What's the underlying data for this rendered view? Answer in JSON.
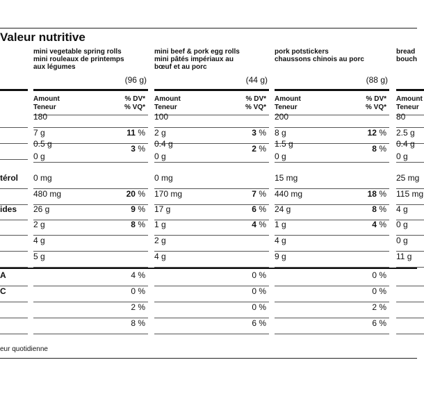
{
  "title": "Valeur nutritive",
  "products": [
    {
      "name_en": "mini vegetable spring rolls",
      "name_fr1": "mini rouleaux de printemps",
      "name_fr2": "aux légumes",
      "serving": "(96 g)"
    },
    {
      "name_en": "mini beef & pork egg rolls",
      "name_fr1": "mini pâtés impériaux au",
      "name_fr2": "bœuf et au porc",
      "serving": "(44 g)"
    },
    {
      "name_en": "pork potstickers",
      "name_fr1": "chaussons chinois au porc",
      "name_fr2": "",
      "serving": "(88 g)"
    },
    {
      "name_en": "bread",
      "name_fr1": "bouch",
      "name_fr2": "",
      "serving": ""
    }
  ],
  "amount_en": "Amount",
  "amount_fr": "Teneur",
  "dv_en": "% DV*",
  "dv_fr": "% VQ*",
  "row_labels": {
    "cholesterol": "térol",
    "sodium": "",
    "carbs": "ides",
    "vitA": "A",
    "vitC": "C"
  },
  "rows": [
    {
      "c": [
        {
          "v": "180",
          "p": ""
        },
        {
          "v": "100",
          "p": ""
        },
        {
          "v": "200",
          "p": ""
        },
        {
          "v": "80",
          "p": ""
        }
      ]
    },
    {
      "c": [
        {
          "v": "7 g",
          "p": "11"
        },
        {
          "v": "2 g",
          "p": "3"
        },
        {
          "v": "8 g",
          "p": "12"
        },
        {
          "v": "2.5 g",
          "p": ""
        }
      ]
    },
    {
      "c": [
        {
          "v": "0.5 g",
          "v2": "0 g",
          "p": "3"
        },
        {
          "v": "0.4 g",
          "v2": "0 g",
          "p": "2"
        },
        {
          "v": "1.5 g",
          "v2": "0 g",
          "p": "8"
        },
        {
          "v": "0.4 g",
          "v2": "0 g",
          "p": ""
        }
      ]
    },
    {
      "c": [
        {
          "v": "0 mg",
          "p": ""
        },
        {
          "v": "0 mg",
          "p": ""
        },
        {
          "v": "15 mg",
          "p": ""
        },
        {
          "v": "25 mg",
          "p": ""
        }
      ]
    },
    {
      "c": [
        {
          "v": "480 mg",
          "p": "20"
        },
        {
          "v": "170 mg",
          "p": "7"
        },
        {
          "v": "440 mg",
          "p": "18"
        },
        {
          "v": "115 mg",
          "p": ""
        }
      ]
    },
    {
      "c": [
        {
          "v": "26 g",
          "p": "9"
        },
        {
          "v": "17 g",
          "p": "6"
        },
        {
          "v": "24 g",
          "p": "8"
        },
        {
          "v": "4 g",
          "p": ""
        }
      ]
    },
    {
      "c": [
        {
          "v": "2 g",
          "p": "8"
        },
        {
          "v": "1 g",
          "p": "4"
        },
        {
          "v": "1 g",
          "p": "4"
        },
        {
          "v": "0 g",
          "p": ""
        }
      ]
    },
    {
      "c": [
        {
          "v": "4 g",
          "p": ""
        },
        {
          "v": "2 g",
          "p": ""
        },
        {
          "v": "4 g",
          "p": ""
        },
        {
          "v": "0 g",
          "p": ""
        }
      ]
    },
    {
      "c": [
        {
          "v": "5 g",
          "p": ""
        },
        {
          "v": "4 g",
          "p": ""
        },
        {
          "v": "9 g",
          "p": ""
        },
        {
          "v": "11 g",
          "p": ""
        }
      ]
    },
    {
      "c": [
        {
          "v": "",
          "p": "4 %"
        },
        {
          "v": "",
          "p": "0 %"
        },
        {
          "v": "",
          "p": "0 %"
        },
        {
          "v": "",
          "p": ""
        }
      ]
    },
    {
      "c": [
        {
          "v": "",
          "p": "0 %"
        },
        {
          "v": "",
          "p": "0 %"
        },
        {
          "v": "",
          "p": "0 %"
        },
        {
          "v": "",
          "p": ""
        }
      ]
    },
    {
      "c": [
        {
          "v": "",
          "p": "2 %"
        },
        {
          "v": "",
          "p": "0 %"
        },
        {
          "v": "",
          "p": "2 %"
        },
        {
          "v": "",
          "p": ""
        }
      ]
    },
    {
      "c": [
        {
          "v": "",
          "p": "8 %"
        },
        {
          "v": "",
          "p": "6 %"
        },
        {
          "v": "",
          "p": "6 %"
        },
        {
          "v": "",
          "p": ""
        }
      ]
    }
  ],
  "footer": "eur quotidienne"
}
